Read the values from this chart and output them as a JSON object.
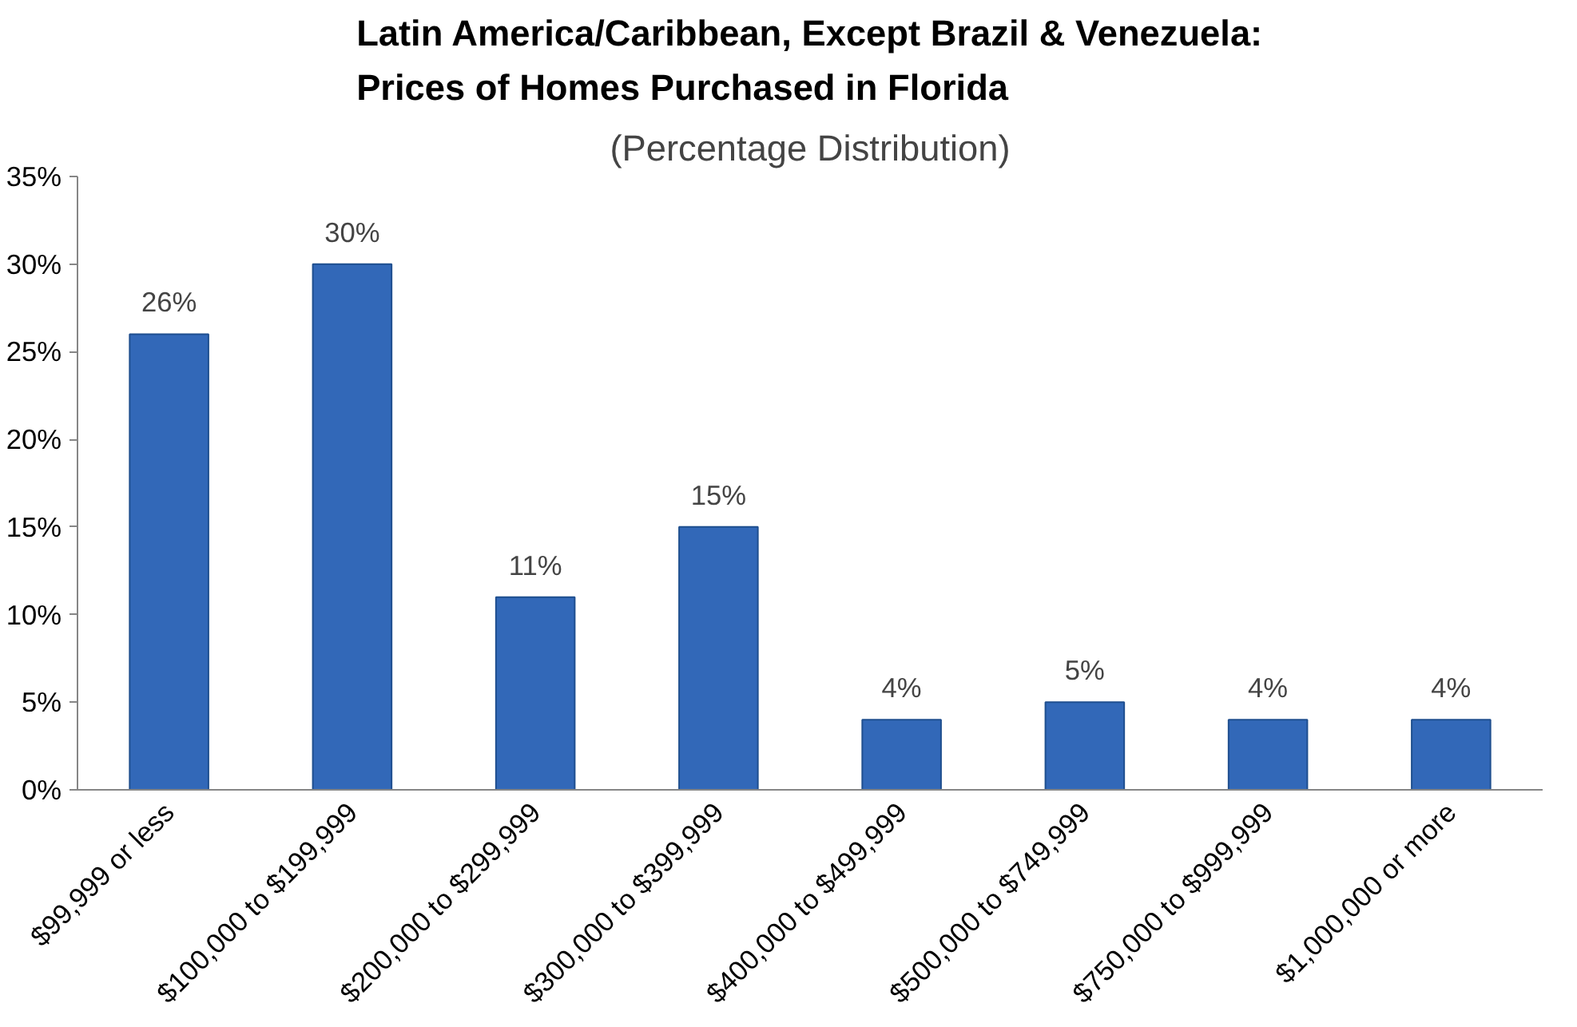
{
  "chart_data": {
    "type": "bar",
    "title": "Latin America/Caribbean, Except Brazil & Venezuela:\nPrices of Homes Purchased in Florida",
    "subtitle": "(Percentage Distribution)",
    "categories": [
      "$99,999 or less",
      "$100,000 to $199,999",
      "$200,000 to $299,999",
      "$300,000 to $399,999",
      "$400,000 to $499,999",
      "$500,000 to $749,999",
      "$750,000 to $999,999",
      "$1,000,000 or more"
    ],
    "values": [
      26,
      30,
      11,
      15,
      4,
      5,
      4,
      4
    ],
    "value_labels": [
      "26%",
      "30%",
      "11%",
      "15%",
      "4%",
      "5%",
      "4%",
      "4%"
    ],
    "color": "#3268b8",
    "ylim": [
      0,
      35
    ],
    "yticks": [
      {
        "value": 0,
        "label": "0%"
      },
      {
        "value": 5,
        "label": "5%"
      },
      {
        "value": 10,
        "label": "10%"
      },
      {
        "value": 15,
        "label": "15%"
      },
      {
        "value": 20,
        "label": "20%"
      },
      {
        "value": 25,
        "label": "25%"
      },
      {
        "value": 30,
        "label": "30%"
      },
      {
        "value": 35,
        "label": "35%"
      }
    ],
    "grid": false
  }
}
